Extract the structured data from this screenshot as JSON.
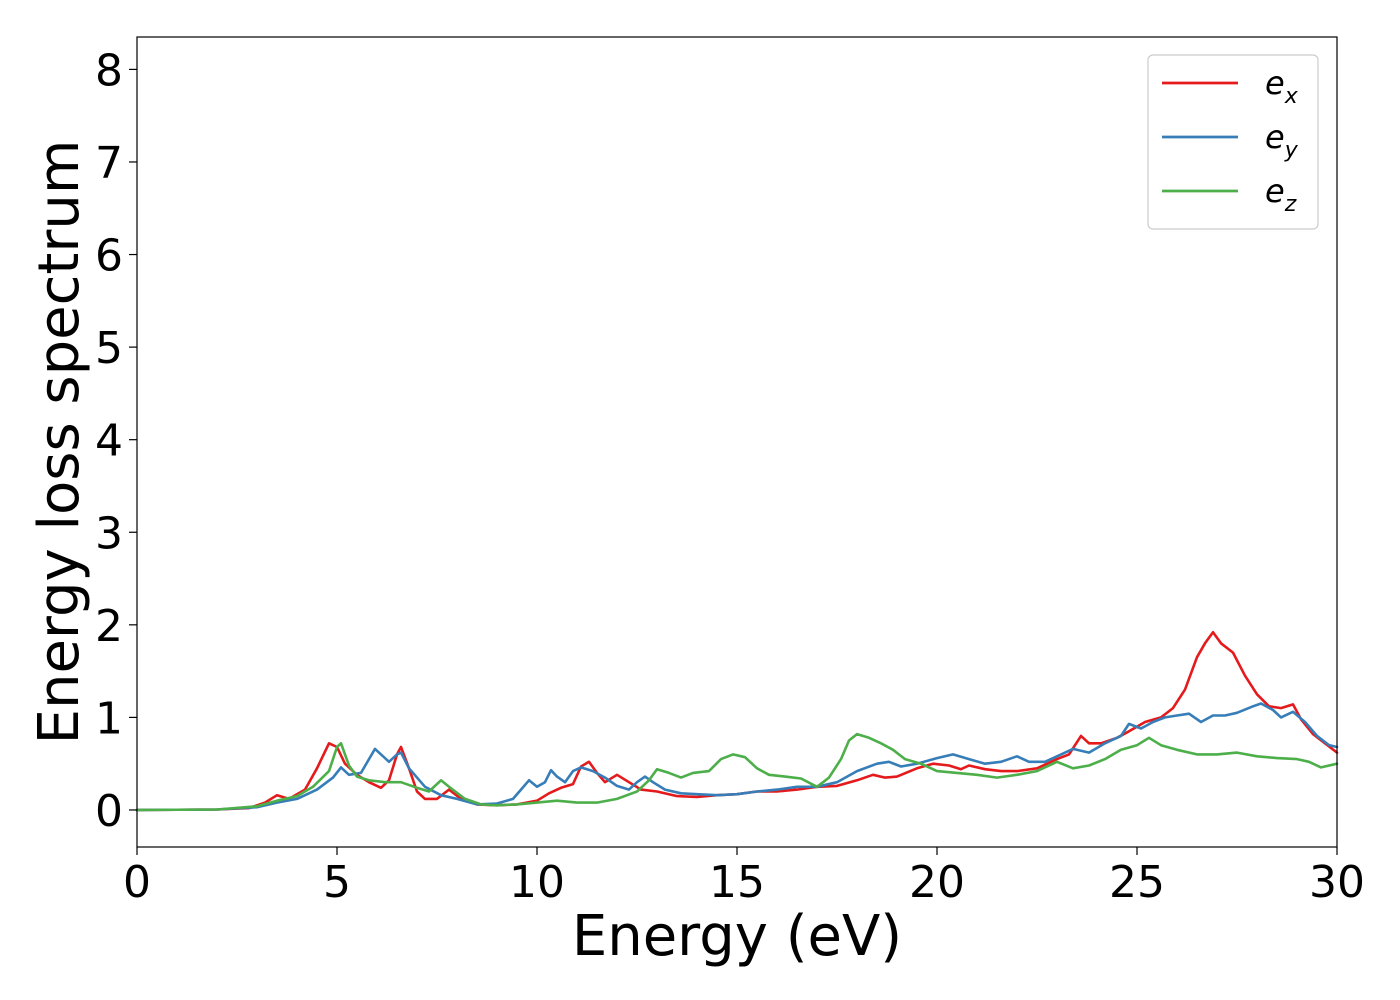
{
  "chart_data": {
    "type": "line",
    "title": "",
    "xlabel": "Energy (eV)",
    "ylabel": "Energy loss spectrum",
    "xlim": [
      0,
      30
    ],
    "ylim": [
      -0.4,
      8.35
    ],
    "xticks": [
      0,
      5,
      10,
      15,
      20,
      25,
      30
    ],
    "yticks": [
      0,
      1,
      2,
      3,
      4,
      5,
      6,
      7,
      8
    ],
    "grid": false,
    "legend_position": "top-right",
    "series": [
      {
        "name": "e_x",
        "label_base": "e",
        "label_sub": "x",
        "color": "#e41a1c",
        "points": [
          [
            0,
            0
          ],
          [
            2,
            0.005
          ],
          [
            2.8,
            0.02
          ],
          [
            3.2,
            0.08
          ],
          [
            3.5,
            0.16
          ],
          [
            3.8,
            0.12
          ],
          [
            4.2,
            0.22
          ],
          [
            4.5,
            0.45
          ],
          [
            4.8,
            0.72
          ],
          [
            5.0,
            0.68
          ],
          [
            5.2,
            0.5
          ],
          [
            5.5,
            0.38
          ],
          [
            5.8,
            0.3
          ],
          [
            6.1,
            0.24
          ],
          [
            6.3,
            0.32
          ],
          [
            6.5,
            0.6
          ],
          [
            6.6,
            0.68
          ],
          [
            6.8,
            0.45
          ],
          [
            7.0,
            0.2
          ],
          [
            7.2,
            0.12
          ],
          [
            7.5,
            0.12
          ],
          [
            7.8,
            0.22
          ],
          [
            8.1,
            0.12
          ],
          [
            8.5,
            0.06
          ],
          [
            9.0,
            0.05
          ],
          [
            9.5,
            0.06
          ],
          [
            10.0,
            0.1
          ],
          [
            10.3,
            0.18
          ],
          [
            10.6,
            0.24
          ],
          [
            10.9,
            0.28
          ],
          [
            11.1,
            0.47
          ],
          [
            11.3,
            0.52
          ],
          [
            11.5,
            0.4
          ],
          [
            11.7,
            0.3
          ],
          [
            12.0,
            0.38
          ],
          [
            12.3,
            0.3
          ],
          [
            12.6,
            0.22
          ],
          [
            13.0,
            0.2
          ],
          [
            13.5,
            0.15
          ],
          [
            14.0,
            0.14
          ],
          [
            14.5,
            0.16
          ],
          [
            15.0,
            0.17
          ],
          [
            15.5,
            0.2
          ],
          [
            16.0,
            0.2
          ],
          [
            16.5,
            0.22
          ],
          [
            17.0,
            0.25
          ],
          [
            17.5,
            0.26
          ],
          [
            18.0,
            0.32
          ],
          [
            18.4,
            0.38
          ],
          [
            18.7,
            0.35
          ],
          [
            19.0,
            0.36
          ],
          [
            19.5,
            0.45
          ],
          [
            19.9,
            0.5
          ],
          [
            20.3,
            0.48
          ],
          [
            20.6,
            0.44
          ],
          [
            20.8,
            0.48
          ],
          [
            21.2,
            0.44
          ],
          [
            21.6,
            0.42
          ],
          [
            22.0,
            0.42
          ],
          [
            22.5,
            0.45
          ],
          [
            23.0,
            0.55
          ],
          [
            23.3,
            0.6
          ],
          [
            23.6,
            0.8
          ],
          [
            23.8,
            0.72
          ],
          [
            24.1,
            0.72
          ],
          [
            24.5,
            0.78
          ],
          [
            24.8,
            0.85
          ],
          [
            25.2,
            0.95
          ],
          [
            25.6,
            1.0
          ],
          [
            25.9,
            1.1
          ],
          [
            26.2,
            1.3
          ],
          [
            26.5,
            1.65
          ],
          [
            26.7,
            1.8
          ],
          [
            26.9,
            1.92
          ],
          [
            27.1,
            1.8
          ],
          [
            27.4,
            1.7
          ],
          [
            27.7,
            1.45
          ],
          [
            28.0,
            1.25
          ],
          [
            28.3,
            1.12
          ],
          [
            28.6,
            1.1
          ],
          [
            28.9,
            1.14
          ],
          [
            29.1,
            0.98
          ],
          [
            29.4,
            0.82
          ],
          [
            29.7,
            0.72
          ],
          [
            30.0,
            0.62
          ]
        ]
      },
      {
        "name": "e_y",
        "label_base": "e",
        "label_sub": "y",
        "color": "#377eb8",
        "points": [
          [
            0,
            0
          ],
          [
            2,
            0.005
          ],
          [
            3.0,
            0.03
          ],
          [
            3.5,
            0.08
          ],
          [
            4.0,
            0.12
          ],
          [
            4.5,
            0.22
          ],
          [
            4.9,
            0.35
          ],
          [
            5.1,
            0.46
          ],
          [
            5.3,
            0.38
          ],
          [
            5.6,
            0.4
          ],
          [
            5.8,
            0.55
          ],
          [
            5.95,
            0.66
          ],
          [
            6.1,
            0.6
          ],
          [
            6.3,
            0.52
          ],
          [
            6.5,
            0.6
          ],
          [
            6.6,
            0.62
          ],
          [
            6.8,
            0.45
          ],
          [
            7.2,
            0.25
          ],
          [
            7.6,
            0.16
          ],
          [
            8.0,
            0.12
          ],
          [
            8.5,
            0.06
          ],
          [
            9.0,
            0.07
          ],
          [
            9.4,
            0.12
          ],
          [
            9.6,
            0.22
          ],
          [
            9.8,
            0.32
          ],
          [
            10.0,
            0.25
          ],
          [
            10.2,
            0.3
          ],
          [
            10.35,
            0.43
          ],
          [
            10.5,
            0.36
          ],
          [
            10.7,
            0.3
          ],
          [
            10.9,
            0.42
          ],
          [
            11.1,
            0.46
          ],
          [
            11.4,
            0.42
          ],
          [
            11.7,
            0.35
          ],
          [
            12.0,
            0.26
          ],
          [
            12.3,
            0.22
          ],
          [
            12.5,
            0.3
          ],
          [
            12.7,
            0.36
          ],
          [
            12.9,
            0.3
          ],
          [
            13.2,
            0.22
          ],
          [
            13.6,
            0.18
          ],
          [
            14.0,
            0.17
          ],
          [
            14.5,
            0.16
          ],
          [
            15.0,
            0.17
          ],
          [
            15.5,
            0.2
          ],
          [
            16.0,
            0.22
          ],
          [
            16.5,
            0.25
          ],
          [
            17.0,
            0.25
          ],
          [
            17.5,
            0.3
          ],
          [
            18.0,
            0.42
          ],
          [
            18.5,
            0.5
          ],
          [
            18.8,
            0.52
          ],
          [
            19.1,
            0.47
          ],
          [
            19.5,
            0.5
          ],
          [
            20.0,
            0.56
          ],
          [
            20.4,
            0.6
          ],
          [
            20.8,
            0.55
          ],
          [
            21.2,
            0.5
          ],
          [
            21.6,
            0.52
          ],
          [
            22.0,
            0.58
          ],
          [
            22.3,
            0.52
          ],
          [
            22.7,
            0.52
          ],
          [
            23.0,
            0.58
          ],
          [
            23.4,
            0.66
          ],
          [
            23.8,
            0.62
          ],
          [
            24.2,
            0.72
          ],
          [
            24.6,
            0.8
          ],
          [
            24.8,
            0.93
          ],
          [
            25.1,
            0.88
          ],
          [
            25.4,
            0.95
          ],
          [
            25.7,
            1.0
          ],
          [
            26.0,
            1.02
          ],
          [
            26.3,
            1.04
          ],
          [
            26.6,
            0.95
          ],
          [
            26.9,
            1.02
          ],
          [
            27.2,
            1.02
          ],
          [
            27.5,
            1.05
          ],
          [
            27.9,
            1.12
          ],
          [
            28.1,
            1.15
          ],
          [
            28.4,
            1.08
          ],
          [
            28.6,
            1.0
          ],
          [
            28.9,
            1.06
          ],
          [
            29.2,
            0.95
          ],
          [
            29.5,
            0.8
          ],
          [
            29.8,
            0.7
          ],
          [
            30.0,
            0.68
          ]
        ]
      },
      {
        "name": "e_z",
        "label_base": "e",
        "label_sub": "z",
        "color": "#4daf4a",
        "points": [
          [
            0,
            0
          ],
          [
            2,
            0.005
          ],
          [
            3.0,
            0.04
          ],
          [
            3.5,
            0.1
          ],
          [
            4.0,
            0.15
          ],
          [
            4.4,
            0.25
          ],
          [
            4.8,
            0.42
          ],
          [
            5.0,
            0.68
          ],
          [
            5.1,
            0.72
          ],
          [
            5.3,
            0.48
          ],
          [
            5.5,
            0.36
          ],
          [
            5.8,
            0.32
          ],
          [
            6.2,
            0.3
          ],
          [
            6.6,
            0.3
          ],
          [
            7.0,
            0.24
          ],
          [
            7.3,
            0.2
          ],
          [
            7.6,
            0.32
          ],
          [
            7.8,
            0.25
          ],
          [
            8.2,
            0.12
          ],
          [
            8.6,
            0.06
          ],
          [
            9.0,
            0.05
          ],
          [
            9.5,
            0.06
          ],
          [
            10.0,
            0.08
          ],
          [
            10.5,
            0.1
          ],
          [
            11.0,
            0.08
          ],
          [
            11.5,
            0.08
          ],
          [
            12.0,
            0.12
          ],
          [
            12.5,
            0.2
          ],
          [
            12.8,
            0.32
          ],
          [
            13.0,
            0.44
          ],
          [
            13.3,
            0.4
          ],
          [
            13.6,
            0.35
          ],
          [
            13.9,
            0.4
          ],
          [
            14.3,
            0.42
          ],
          [
            14.6,
            0.55
          ],
          [
            14.9,
            0.6
          ],
          [
            15.2,
            0.57
          ],
          [
            15.5,
            0.45
          ],
          [
            15.8,
            0.38
          ],
          [
            16.2,
            0.36
          ],
          [
            16.6,
            0.34
          ],
          [
            17.0,
            0.25
          ],
          [
            17.3,
            0.35
          ],
          [
            17.6,
            0.55
          ],
          [
            17.8,
            0.75
          ],
          [
            18.0,
            0.82
          ],
          [
            18.3,
            0.78
          ],
          [
            18.6,
            0.72
          ],
          [
            18.9,
            0.65
          ],
          [
            19.2,
            0.55
          ],
          [
            19.6,
            0.5
          ],
          [
            20.0,
            0.42
          ],
          [
            20.5,
            0.4
          ],
          [
            21.0,
            0.38
          ],
          [
            21.5,
            0.35
          ],
          [
            22.0,
            0.38
          ],
          [
            22.5,
            0.42
          ],
          [
            23.0,
            0.52
          ],
          [
            23.4,
            0.45
          ],
          [
            23.8,
            0.48
          ],
          [
            24.2,
            0.55
          ],
          [
            24.6,
            0.65
          ],
          [
            25.0,
            0.7
          ],
          [
            25.3,
            0.78
          ],
          [
            25.6,
            0.7
          ],
          [
            26.0,
            0.65
          ],
          [
            26.5,
            0.6
          ],
          [
            27.0,
            0.6
          ],
          [
            27.5,
            0.62
          ],
          [
            28.0,
            0.58
          ],
          [
            28.5,
            0.56
          ],
          [
            29.0,
            0.55
          ],
          [
            29.3,
            0.52
          ],
          [
            29.6,
            0.46
          ],
          [
            30.0,
            0.5
          ]
        ]
      }
    ]
  }
}
